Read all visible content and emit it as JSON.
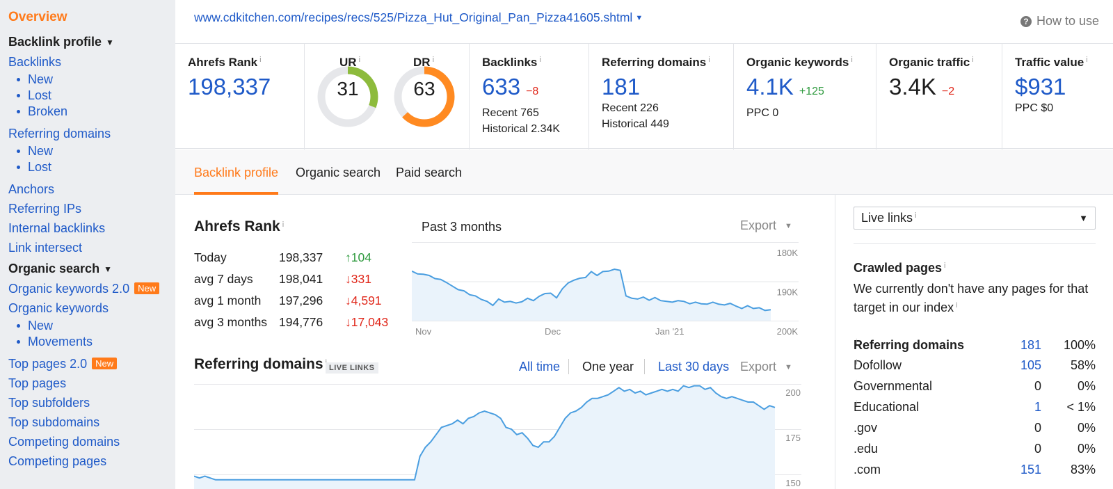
{
  "sidebar": {
    "overview": "Overview",
    "backlink_profile": "Backlink profile",
    "backlinks": "Backlinks",
    "backlinks_sub": [
      "New",
      "Lost",
      "Broken"
    ],
    "referring_domains": "Referring domains",
    "referring_domains_sub": [
      "New",
      "Lost"
    ],
    "anchors": "Anchors",
    "referring_ips": "Referring IPs",
    "internal_backlinks": "Internal backlinks",
    "link_intersect": "Link intersect",
    "organic_search": "Organic search",
    "organic_keywords_2": "Organic keywords 2.0",
    "organic_keywords": "Organic keywords",
    "organic_keywords_sub": [
      "New",
      "Movements"
    ],
    "top_pages_2": "Top pages 2.0",
    "top_pages": "Top pages",
    "top_subfolders": "Top subfolders",
    "top_subdomains": "Top subdomains",
    "competing_domains": "Competing domains",
    "competing_pages": "Competing pages",
    "new_badge": "New"
  },
  "header": {
    "url": "www.cdkitchen.com/recipes/recs/525/Pizza_Hut_Original_Pan_Pizza41605.shtml",
    "how_to_use": "How to use"
  },
  "metrics": {
    "ahrefs_rank": {
      "label": "Ahrefs Rank",
      "value": "198,337"
    },
    "ur": {
      "label": "UR",
      "value": "31",
      "fraction": 0.31
    },
    "dr": {
      "label": "DR",
      "value": "63",
      "fraction": 0.63
    },
    "backlinks": {
      "label": "Backlinks",
      "value": "633",
      "delta": "−8",
      "recent": "Recent 765",
      "historical": "Historical 2.34K"
    },
    "referring_domains": {
      "label": "Referring domains",
      "value": "181",
      "recent": "Recent 226",
      "historical": "Historical 449"
    },
    "organic_keywords": {
      "label": "Organic keywords",
      "value": "4.1K",
      "delta": "+125",
      "ppc": "PPC 0"
    },
    "organic_traffic": {
      "label": "Organic traffic",
      "value": "3.4K",
      "delta": "−2"
    },
    "traffic_value": {
      "label": "Traffic value",
      "value": "$931",
      "ppc": "PPC $0"
    },
    "info": "i"
  },
  "tabs": [
    "Backlink profile",
    "Organic search",
    "Paid search"
  ],
  "rank_section": {
    "title": "Ahrefs Rank",
    "period": "Past 3 months",
    "export": "Export",
    "rows": [
      {
        "label": "Today",
        "value": "198,337",
        "change": "↑104",
        "dir": "up"
      },
      {
        "label": "avg 7 days",
        "value": "198,041",
        "change": "↓331",
        "dir": "down"
      },
      {
        "label": "avg 1 month",
        "value": "197,296",
        "change": "↓4,591",
        "dir": "down"
      },
      {
        "label": "avg 3 months",
        "value": "194,776",
        "change": "↓17,043",
        "dir": "down"
      }
    ]
  },
  "refdomains_section": {
    "title": "Referring domains",
    "tag": "LIVE LINKS",
    "ranges": [
      "All time",
      "One year",
      "Last 30 days"
    ],
    "selected_range": "One year",
    "export": "Export"
  },
  "right_panel": {
    "select_value": "Live links",
    "crawled_title": "Crawled pages",
    "crawled_text": "We currently don't have any pages for that target in our index",
    "rd_title": "Referring domains",
    "rd_total": "181",
    "rd_total_pct": "100%",
    "rows": [
      {
        "label": "Dofollow",
        "info": true,
        "count": "105",
        "pct": "58%",
        "link": true
      },
      {
        "label": "Governmental",
        "info": true,
        "count": "0",
        "pct": "0%",
        "link": false
      },
      {
        "label": "Educational",
        "info": true,
        "count": "1",
        "pct": "< 1%",
        "link": true
      },
      {
        "label": ".gov",
        "info": false,
        "count": "0",
        "pct": "0%",
        "link": false
      },
      {
        "label": ".edu",
        "info": false,
        "count": "0",
        "pct": "0%",
        "link": false
      },
      {
        "label": ".com",
        "info": false,
        "count": "151",
        "pct": "83%",
        "link": true
      }
    ]
  },
  "chart_data": [
    {
      "type": "area",
      "title": "Ahrefs Rank",
      "x_ticks": [
        "Nov",
        "Dec",
        "Jan '21"
      ],
      "y_ticks": [
        "180K",
        "190K",
        "200K"
      ],
      "ylim": [
        200000,
        180000
      ],
      "inverted_y": true,
      "values": [
        187400,
        188100,
        188200,
        188500,
        189300,
        189500,
        190300,
        191200,
        192100,
        192400,
        193400,
        193700,
        194600,
        195100,
        196100,
        194500,
        195300,
        195100,
        195500,
        195200,
        194300,
        194900,
        193800,
        193100,
        193000,
        194200,
        191900,
        190400,
        189700,
        189200,
        189000,
        187500,
        188500,
        187500,
        187400,
        186900,
        187200,
        193700,
        194300,
        194500,
        194000,
        194800,
        194100,
        194900,
        195100,
        195300,
        194900,
        195100,
        195700,
        195300,
        195700,
        195800,
        195300,
        195800,
        196000,
        195600,
        196300,
        196900,
        196200,
        196900,
        196700,
        197400,
        197200
      ],
      "color": "#4a9ee0"
    },
    {
      "type": "area",
      "title": "Referring domains",
      "y_ticks": [
        "200",
        "175",
        "150"
      ],
      "ylim": [
        150,
        200
      ],
      "values": [
        149,
        148,
        149,
        148,
        147,
        147,
        147,
        147,
        147,
        147,
        147,
        147,
        147,
        147,
        147,
        147,
        147,
        147,
        147,
        147,
        147,
        147,
        147,
        147,
        147,
        147,
        147,
        147,
        147,
        147,
        147,
        147,
        147,
        147,
        147,
        147,
        147,
        147,
        147,
        147,
        147,
        147,
        160,
        165,
        168,
        172,
        176,
        177,
        178,
        180,
        178,
        181,
        182,
        184,
        185,
        184,
        183,
        181,
        176,
        175,
        172,
        173,
        170,
        166,
        165,
        168,
        168,
        171,
        176,
        181,
        184,
        185,
        187,
        190,
        192,
        192,
        193,
        194,
        196,
        198,
        196,
        197,
        195,
        196,
        194,
        195,
        196,
        197,
        196,
        197,
        196,
        199,
        198,
        199,
        199,
        197,
        198,
        195,
        193,
        192,
        193,
        192,
        191,
        190,
        190,
        188,
        186,
        188,
        187
      ],
      "color": "#4a9ee0"
    }
  ]
}
